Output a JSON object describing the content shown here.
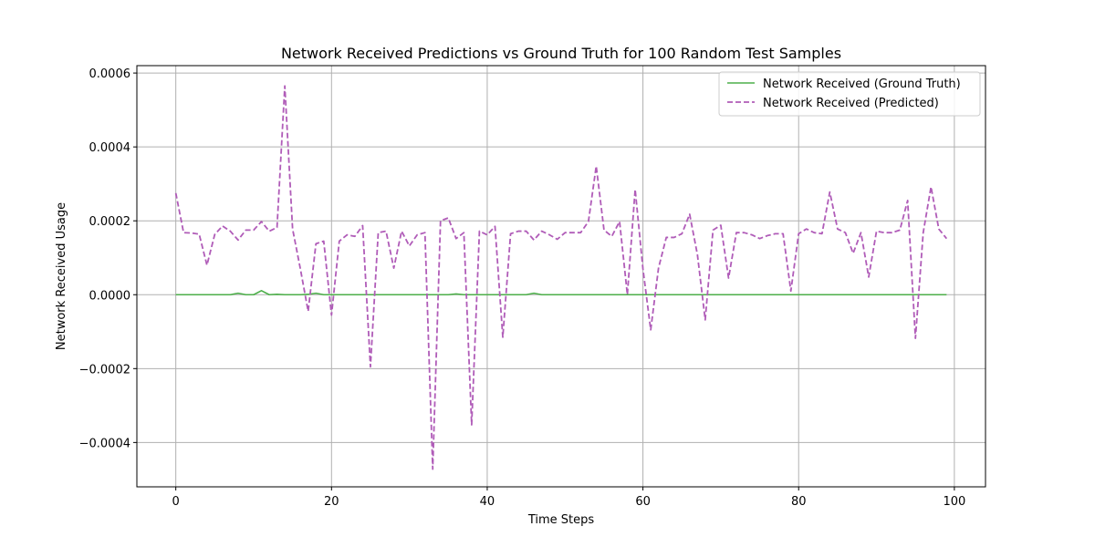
{
  "chart_data": {
    "type": "line",
    "title": "Network Received Predictions vs Ground Truth for 100 Random Test Samples",
    "xlabel": "Time Steps",
    "ylabel": "Network Received Usage",
    "xlim": [
      -5,
      104
    ],
    "ylim": [
      -0.00052,
      0.00062
    ],
    "xticks": [
      0,
      20,
      40,
      60,
      80,
      100
    ],
    "xtick_labels": [
      "0",
      "20",
      "40",
      "60",
      "80",
      "100"
    ],
    "yticks": [
      -0.0004,
      -0.0002,
      0.0,
      0.0002,
      0.0004,
      0.0006
    ],
    "ytick_labels": [
      "−0.0004",
      "−0.0002",
      "0.0000",
      "0.0002",
      "0.0004",
      "0.0006"
    ],
    "grid": true,
    "legend_position": "top-right",
    "series": [
      {
        "name": "Network Received (Ground Truth)",
        "color": "#4daf4a",
        "style": "solid",
        "x": [
          0,
          1,
          2,
          3,
          4,
          5,
          6,
          7,
          8,
          9,
          10,
          11,
          12,
          13,
          14,
          15,
          16,
          17,
          18,
          19,
          20,
          21,
          22,
          23,
          24,
          25,
          26,
          27,
          28,
          29,
          30,
          31,
          32,
          33,
          34,
          35,
          36,
          37,
          38,
          39,
          40,
          41,
          42,
          43,
          44,
          45,
          46,
          47,
          48,
          49,
          50,
          51,
          52,
          53,
          54,
          55,
          56,
          57,
          58,
          59,
          60,
          61,
          62,
          63,
          64,
          65,
          66,
          67,
          68,
          69,
          70,
          71,
          72,
          73,
          74,
          75,
          76,
          77,
          78,
          79,
          80,
          81,
          82,
          83,
          84,
          85,
          86,
          87,
          88,
          89,
          90,
          91,
          92,
          93,
          94,
          95,
          96,
          97,
          98,
          99
        ],
        "values": [
          0.0,
          0.0,
          0.0,
          0.0,
          0.0,
          0.0,
          0.0,
          0.0,
          4e-06,
          0.0,
          0.0,
          1.1e-05,
          0.0,
          1e-06,
          0.0,
          0.0,
          0.0,
          1e-06,
          4e-06,
          0.0,
          0.0,
          0.0,
          0.0,
          0.0,
          0.0,
          0.0,
          0.0,
          0.0,
          0.0,
          0.0,
          0.0,
          0.0,
          0.0,
          0.0,
          0.0,
          0.0,
          2e-06,
          0.0,
          0.0,
          0.0,
          0.0,
          0.0,
          0.0,
          0.0,
          0.0,
          0.0,
          4e-06,
          0.0,
          0.0,
          0.0,
          0.0,
          0.0,
          0.0,
          0.0,
          0.0,
          0.0,
          0.0,
          0.0,
          0.0,
          0.0,
          0.0,
          0.0,
          0.0,
          0.0,
          0.0,
          0.0,
          0.0,
          0.0,
          0.0,
          0.0,
          0.0,
          0.0,
          0.0,
          0.0,
          0.0,
          0.0,
          0.0,
          0.0,
          0.0,
          0.0,
          0.0,
          0.0,
          0.0,
          0.0,
          0.0,
          0.0,
          0.0,
          0.0,
          0.0,
          0.0,
          0.0,
          0.0,
          0.0,
          0.0,
          0.0,
          0.0,
          0.0,
          0.0,
          0.0,
          0.0
        ]
      },
      {
        "name": "Network Received (Predicted)",
        "color": "#b05cb8",
        "style": "dashed",
        "x": [
          0,
          1,
          2,
          3,
          4,
          5,
          6,
          7,
          8,
          9,
          10,
          11,
          12,
          13,
          14,
          15,
          16,
          17,
          18,
          19,
          20,
          21,
          22,
          23,
          24,
          25,
          26,
          27,
          28,
          29,
          30,
          31,
          32,
          33,
          34,
          35,
          36,
          37,
          38,
          39,
          40,
          41,
          42,
          43,
          44,
          45,
          46,
          47,
          48,
          49,
          50,
          51,
          52,
          53,
          54,
          55,
          56,
          57,
          58,
          59,
          60,
          61,
          62,
          63,
          64,
          65,
          66,
          67,
          68,
          69,
          70,
          71,
          72,
          73,
          74,
          75,
          76,
          77,
          78,
          79,
          80,
          81,
          82,
          83,
          84,
          85,
          86,
          87,
          88,
          89,
          90,
          91,
          92,
          93,
          94,
          95,
          96,
          97,
          98,
          99
        ],
        "values": [
          0.000275,
          0.000168,
          0.000167,
          0.000164,
          8e-05,
          0.000163,
          0.000186,
          0.000172,
          0.000148,
          0.000175,
          0.000175,
          0.000198,
          0.000172,
          0.000182,
          0.000565,
          0.000178,
          7e-05,
          -4.5e-05,
          0.000138,
          0.000145,
          -5.5e-05,
          0.000145,
          0.000162,
          0.000158,
          0.000187,
          -0.000195,
          0.000168,
          0.000172,
          7.2e-05,
          0.000172,
          0.000132,
          0.000162,
          0.000168,
          -0.000472,
          0.0002,
          0.000208,
          0.000152,
          0.000168,
          -0.000352,
          0.000172,
          0.000162,
          0.000185,
          -0.000115,
          0.000165,
          0.000172,
          0.000172,
          0.000148,
          0.000172,
          0.000162,
          0.00015,
          0.000168,
          0.000168,
          0.000168,
          0.000198,
          0.000348,
          0.000175,
          0.000158,
          0.000198,
          0.0,
          0.000285,
          7e-05,
          -9.5e-05,
          7.2e-05,
          0.000155,
          0.000155,
          0.000165,
          0.000218,
          0.000108,
          -6.8e-05,
          0.000175,
          0.000188,
          4.5e-05,
          0.000168,
          0.000168,
          0.000162,
          0.000152,
          0.00016,
          0.000165,
          0.000165,
          1e-05,
          0.000165,
          0.000178,
          0.000168,
          0.000165,
          0.000278,
          0.000178,
          0.000168,
          0.000112,
          0.000168,
          4.8e-05,
          0.000172,
          0.000168,
          0.000168,
          0.000175,
          0.000255,
          -0.000118,
          0.000168,
          0.000292,
          0.000178,
          0.000152
        ]
      }
    ]
  }
}
